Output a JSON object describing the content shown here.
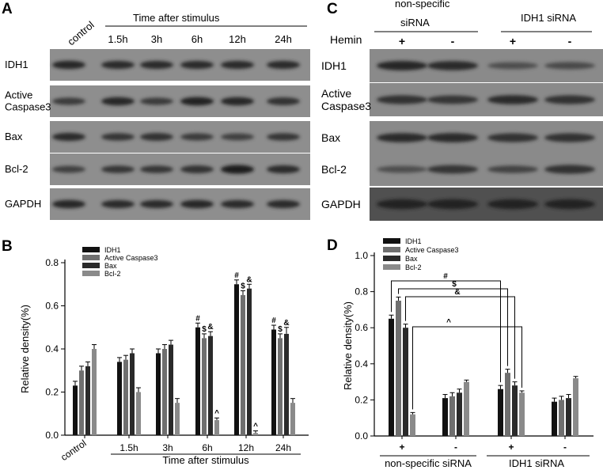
{
  "panels": {
    "a": {
      "letter": "A"
    },
    "b": {
      "letter": "B"
    },
    "c": {
      "letter": "C"
    },
    "d": {
      "letter": "D"
    }
  },
  "blot_a": {
    "header": "Time after stimulus",
    "control_label": "control",
    "lanes": [
      "1.5h",
      "3h",
      "6h",
      "12h",
      "24h"
    ],
    "rows": [
      "IDH1",
      "Active\nCaspase3",
      "Bax",
      "Bcl-2",
      "GAPDH"
    ],
    "band_intensity": [
      [
        0.75,
        0.7,
        0.7,
        0.72,
        0.72,
        0.72
      ],
      [
        0.55,
        0.75,
        0.55,
        0.8,
        0.75,
        0.65
      ],
      [
        0.7,
        0.6,
        0.65,
        0.55,
        0.5,
        0.6
      ],
      [
        0.5,
        0.6,
        0.6,
        0.65,
        0.85,
        0.7
      ],
      [
        0.75,
        0.7,
        0.7,
        0.75,
        0.72,
        0.72
      ]
    ]
  },
  "blot_c": {
    "group1_label": "non-specific\nsiRNA",
    "group2_label": "IDH1 siRNA",
    "hemin_label": "Hemin",
    "hemin_signs": [
      "+",
      "-",
      "+",
      "-"
    ],
    "rows": [
      "IDH1",
      "Active\nCaspase3",
      "Bax",
      "Bcl-2",
      "GAPDH"
    ],
    "band_intensity": [
      [
        0.75,
        0.7,
        0.35,
        0.4
      ],
      [
        0.65,
        0.6,
        0.7,
        0.65
      ],
      [
        0.7,
        0.72,
        0.65,
        0.65
      ],
      [
        0.35,
        0.6,
        0.45,
        0.65
      ],
      [
        0.8,
        0.8,
        0.8,
        0.8
      ]
    ]
  },
  "chart_data": [
    {
      "type": "bar",
      "panel": "B",
      "categories": [
        "control",
        "1.5h",
        "3h",
        "6h",
        "12h",
        "24h"
      ],
      "series": [
        {
          "name": "IDH1",
          "color": "#111111",
          "values": [
            0.23,
            0.34,
            0.38,
            0.5,
            0.7,
            0.49
          ],
          "errors": [
            0.02,
            0.02,
            0.02,
            0.02,
            0.02,
            0.02
          ]
        },
        {
          "name": "Active Caspase3",
          "color": "#6f6f6f",
          "values": [
            0.3,
            0.35,
            0.4,
            0.45,
            0.65,
            0.45
          ],
          "errors": [
            0.02,
            0.02,
            0.02,
            0.02,
            0.02,
            0.02
          ]
        },
        {
          "name": "Bax",
          "color": "#2a2a2a",
          "values": [
            0.32,
            0.38,
            0.42,
            0.46,
            0.68,
            0.47
          ],
          "errors": [
            0.02,
            0.02,
            0.02,
            0.02,
            0.02,
            0.03
          ]
        },
        {
          "name": "Bcl-2",
          "color": "#8a8a8a",
          "values": [
            0.4,
            0.2,
            0.15,
            0.07,
            0.01,
            0.15
          ],
          "errors": [
            0.02,
            0.02,
            0.02,
            0.01,
            0.01,
            0.02
          ]
        }
      ],
      "ylabel": "Relative density(%)",
      "xlabel": "Time after stimulus",
      "ylim": [
        0,
        0.8
      ],
      "yticks": [
        "0.0",
        "0.2",
        "0.4",
        "0.6",
        "0.8"
      ],
      "legend": "top-left",
      "sig_marks": [
        {
          "category": "6h",
          "series": "IDH1",
          "mark": "#"
        },
        {
          "category": "6h",
          "series": "Active Caspase3",
          "mark": "$"
        },
        {
          "category": "6h",
          "series": "Bax",
          "mark": "&"
        },
        {
          "category": "6h",
          "series": "Bcl-2",
          "mark": "^"
        },
        {
          "category": "12h",
          "series": "IDH1",
          "mark": "#"
        },
        {
          "category": "12h",
          "series": "Active Caspase3",
          "mark": "$"
        },
        {
          "category": "12h",
          "series": "Bax",
          "mark": "&"
        },
        {
          "category": "12h",
          "series": "Bcl-2",
          "mark": "^"
        },
        {
          "category": "24h",
          "series": "IDH1",
          "mark": "#"
        },
        {
          "category": "24h",
          "series": "Active Caspase3",
          "mark": "$"
        },
        {
          "category": "24h",
          "series": "Bax",
          "mark": "&"
        }
      ]
    },
    {
      "type": "bar",
      "panel": "D",
      "categories": [
        "+",
        "-",
        "+",
        "-"
      ],
      "group_labels": [
        "non-specific siRNA",
        "IDH1 siRNA"
      ],
      "series": [
        {
          "name": "IDH1",
          "color": "#111111",
          "values": [
            0.65,
            0.21,
            0.26,
            0.19
          ],
          "errors": [
            0.02,
            0.02,
            0.02,
            0.02
          ]
        },
        {
          "name": "Active Caspase3",
          "color": "#6f6f6f",
          "values": [
            0.75,
            0.22,
            0.35,
            0.2
          ],
          "errors": [
            0.02,
            0.02,
            0.02,
            0.02
          ]
        },
        {
          "name": "Bax",
          "color": "#2a2a2a",
          "values": [
            0.6,
            0.24,
            0.28,
            0.21
          ],
          "errors": [
            0.02,
            0.02,
            0.02,
            0.02
          ]
        },
        {
          "name": "Bcl-2",
          "color": "#8a8a8a",
          "values": [
            0.12,
            0.3,
            0.24,
            0.32
          ],
          "errors": [
            0.01,
            0.01,
            0.01,
            0.01
          ]
        }
      ],
      "ylabel": "Relative density(%)",
      "ylim": [
        0,
        1.0
      ],
      "yticks": [
        "0.0",
        "0.2",
        "0.4",
        "0.6",
        "0.8",
        "1.0"
      ],
      "legend": "top-left",
      "comparisons": [
        {
          "series": "IDH1",
          "from": 0,
          "to": 2,
          "mark": "#"
        },
        {
          "series": "Active Caspase3",
          "from": 0,
          "to": 2,
          "mark": "$"
        },
        {
          "series": "Bax",
          "from": 0,
          "to": 2,
          "mark": "&"
        },
        {
          "series": "Bcl-2",
          "from": 0,
          "to": 2,
          "mark": "^"
        }
      ]
    }
  ]
}
